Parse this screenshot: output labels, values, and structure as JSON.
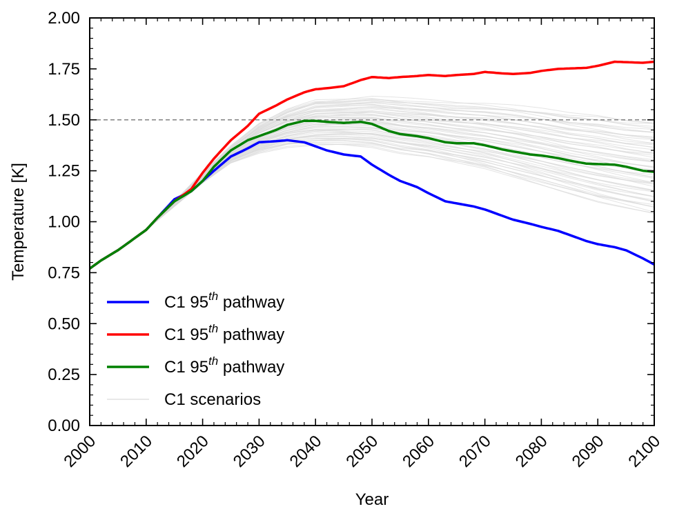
{
  "chart_data": {
    "type": "line",
    "title": "",
    "xlabel": "Year",
    "ylabel": "Temperature [K]",
    "xlim": [
      2000,
      2100
    ],
    "ylim": [
      0.0,
      2.0
    ],
    "x_ticks": [
      "2000",
      "2010",
      "2020",
      "2030",
      "2040",
      "2050",
      "2060",
      "2070",
      "2080",
      "2090",
      "2100"
    ],
    "y_ticks": [
      "0.00",
      "0.25",
      "0.50",
      "0.75",
      "1.00",
      "1.25",
      "1.50",
      "1.75",
      "2.00"
    ],
    "grid": false,
    "reference_line": {
      "y": 1.5,
      "style": "dashed",
      "color": "#808080"
    },
    "legend": {
      "placement": "lower-left",
      "entries": [
        {
          "prefix": "C1 95",
          "sup": "th",
          "suffix": " pathway",
          "color": "#0000ff"
        },
        {
          "prefix": "C1 95",
          "sup": "th",
          "suffix": " pathway",
          "color": "#ff0000"
        },
        {
          "prefix": "C1 95",
          "sup": "th",
          "suffix": " pathway",
          "color": "#008000"
        },
        {
          "prefix": "C1 scenarios",
          "sup": "",
          "suffix": "",
          "color": "#d9d9d9"
        }
      ]
    },
    "series": [
      {
        "color": "#0000ff",
        "x": [
          2000,
          2002,
          2005,
          2007,
          2010,
          2012,
          2015,
          2018,
          2020,
          2022,
          2025,
          2028,
          2030,
          2033,
          2035,
          2038,
          2040,
          2042,
          2045,
          2048,
          2050,
          2053,
          2055,
          2058,
          2060,
          2063,
          2065,
          2068,
          2070,
          2073,
          2075,
          2078,
          2080,
          2083,
          2085,
          2088,
          2090,
          2093,
          2095,
          2098,
          2100
        ],
        "y": [
          0.77,
          0.81,
          0.86,
          0.9,
          0.96,
          1.02,
          1.11,
          1.15,
          1.2,
          1.25,
          1.32,
          1.36,
          1.39,
          1.395,
          1.4,
          1.39,
          1.37,
          1.35,
          1.33,
          1.32,
          1.28,
          1.23,
          1.2,
          1.17,
          1.14,
          1.1,
          1.09,
          1.075,
          1.06,
          1.03,
          1.01,
          0.99,
          0.975,
          0.955,
          0.935,
          0.905,
          0.89,
          0.875,
          0.86,
          0.82,
          0.79
        ]
      },
      {
        "color": "#ff0000",
        "x": [
          2000,
          2002,
          2005,
          2007,
          2010,
          2012,
          2015,
          2018,
          2020,
          2022,
          2025,
          2028,
          2030,
          2033,
          2035,
          2038,
          2040,
          2042,
          2045,
          2048,
          2050,
          2053,
          2055,
          2058,
          2060,
          2063,
          2065,
          2068,
          2070,
          2073,
          2075,
          2078,
          2080,
          2083,
          2085,
          2088,
          2090,
          2093,
          2095,
          2098,
          2100
        ],
        "y": [
          0.77,
          0.81,
          0.86,
          0.9,
          0.96,
          1.02,
          1.1,
          1.16,
          1.24,
          1.31,
          1.4,
          1.47,
          1.53,
          1.57,
          1.6,
          1.635,
          1.65,
          1.655,
          1.665,
          1.695,
          1.71,
          1.705,
          1.71,
          1.715,
          1.72,
          1.715,
          1.72,
          1.725,
          1.735,
          1.728,
          1.725,
          1.73,
          1.74,
          1.75,
          1.752,
          1.755,
          1.765,
          1.785,
          1.783,
          1.78,
          1.785
        ]
      },
      {
        "color": "#008000",
        "x": [
          2000,
          2002,
          2005,
          2007,
          2010,
          2012,
          2015,
          2018,
          2020,
          2022,
          2025,
          2028,
          2030,
          2033,
          2035,
          2038,
          2040,
          2042,
          2045,
          2048,
          2050,
          2053,
          2055,
          2058,
          2060,
          2063,
          2065,
          2068,
          2070,
          2073,
          2075,
          2078,
          2080,
          2083,
          2085,
          2088,
          2090,
          2093,
          2095,
          2098,
          2100
        ],
        "y": [
          0.77,
          0.81,
          0.86,
          0.9,
          0.96,
          1.02,
          1.1,
          1.15,
          1.2,
          1.27,
          1.35,
          1.4,
          1.42,
          1.45,
          1.475,
          1.495,
          1.495,
          1.49,
          1.485,
          1.49,
          1.48,
          1.445,
          1.43,
          1.42,
          1.41,
          1.39,
          1.385,
          1.385,
          1.375,
          1.355,
          1.345,
          1.33,
          1.325,
          1.312,
          1.3,
          1.285,
          1.283,
          1.28,
          1.27,
          1.25,
          1.245
        ]
      }
    ],
    "scenario_band": {
      "name": "C1 scenarios",
      "color": "#d9d9d9",
      "count": 60,
      "x": [
        2000,
        2010,
        2020,
        2025,
        2030,
        2035,
        2040,
        2045,
        2050,
        2055,
        2060,
        2065,
        2070,
        2075,
        2080,
        2085,
        2090,
        2095,
        2100
      ],
      "upper": [
        0.77,
        0.96,
        1.24,
        1.37,
        1.48,
        1.55,
        1.595,
        1.6,
        1.61,
        1.6,
        1.59,
        1.58,
        1.575,
        1.565,
        1.55,
        1.53,
        1.52,
        1.5,
        1.49
      ],
      "lower": [
        0.77,
        0.96,
        1.19,
        1.29,
        1.34,
        1.37,
        1.38,
        1.38,
        1.37,
        1.34,
        1.32,
        1.29,
        1.26,
        1.22,
        1.18,
        1.14,
        1.1,
        1.07,
        1.04
      ]
    }
  }
}
